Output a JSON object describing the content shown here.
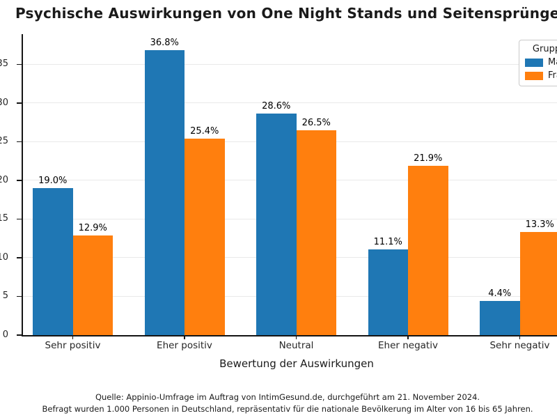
{
  "chart_data": {
    "type": "bar",
    "title": "Psychische Auswirkungen von One Night Stands und Seitensprüngen",
    "xlabel": "Bewertung der Auswirkungen",
    "ylabel": "",
    "categories": [
      "Sehr positiv",
      "Eher positiv",
      "Neutral",
      "Eher negativ",
      "Sehr negativ"
    ],
    "series": [
      {
        "name": "Männer",
        "color": "#1f77b4",
        "values": [
          19.0,
          36.8,
          28.6,
          11.1,
          4.4
        ]
      },
      {
        "name": "Frauen",
        "color": "#ff7f0e",
        "values": [
          12.9,
          25.4,
          26.5,
          21.9,
          13.3
        ]
      }
    ],
    "value_labels": {
      "series": [
        [
          "19.0%",
          "36.8%",
          "28.6%",
          "11.1%",
          "4.4%"
        ],
        [
          "12.9%",
          "25.4%",
          "26.5%",
          "21.9%",
          "13.3%"
        ]
      ],
      "suffix": "%"
    },
    "legend": {
      "title": "Gruppe",
      "position": "upper right"
    },
    "yticks": [
      0,
      5,
      10,
      15,
      20,
      25,
      30,
      35
    ],
    "ylim": [
      0,
      38.9
    ],
    "grid": true,
    "axis_color": "#141414",
    "grid_color": "#e9e9e9"
  },
  "footer": {
    "line1": "Quelle: Appinio-Umfrage im Auftrag von IntimGesund.de, durchgeführt am 21. November 2024.",
    "line2": "Befragt wurden 1.000 Personen in Deutschland, repräsentativ für die nationale Bevölkerung im Alter von 16 bis 65 Jahren."
  }
}
